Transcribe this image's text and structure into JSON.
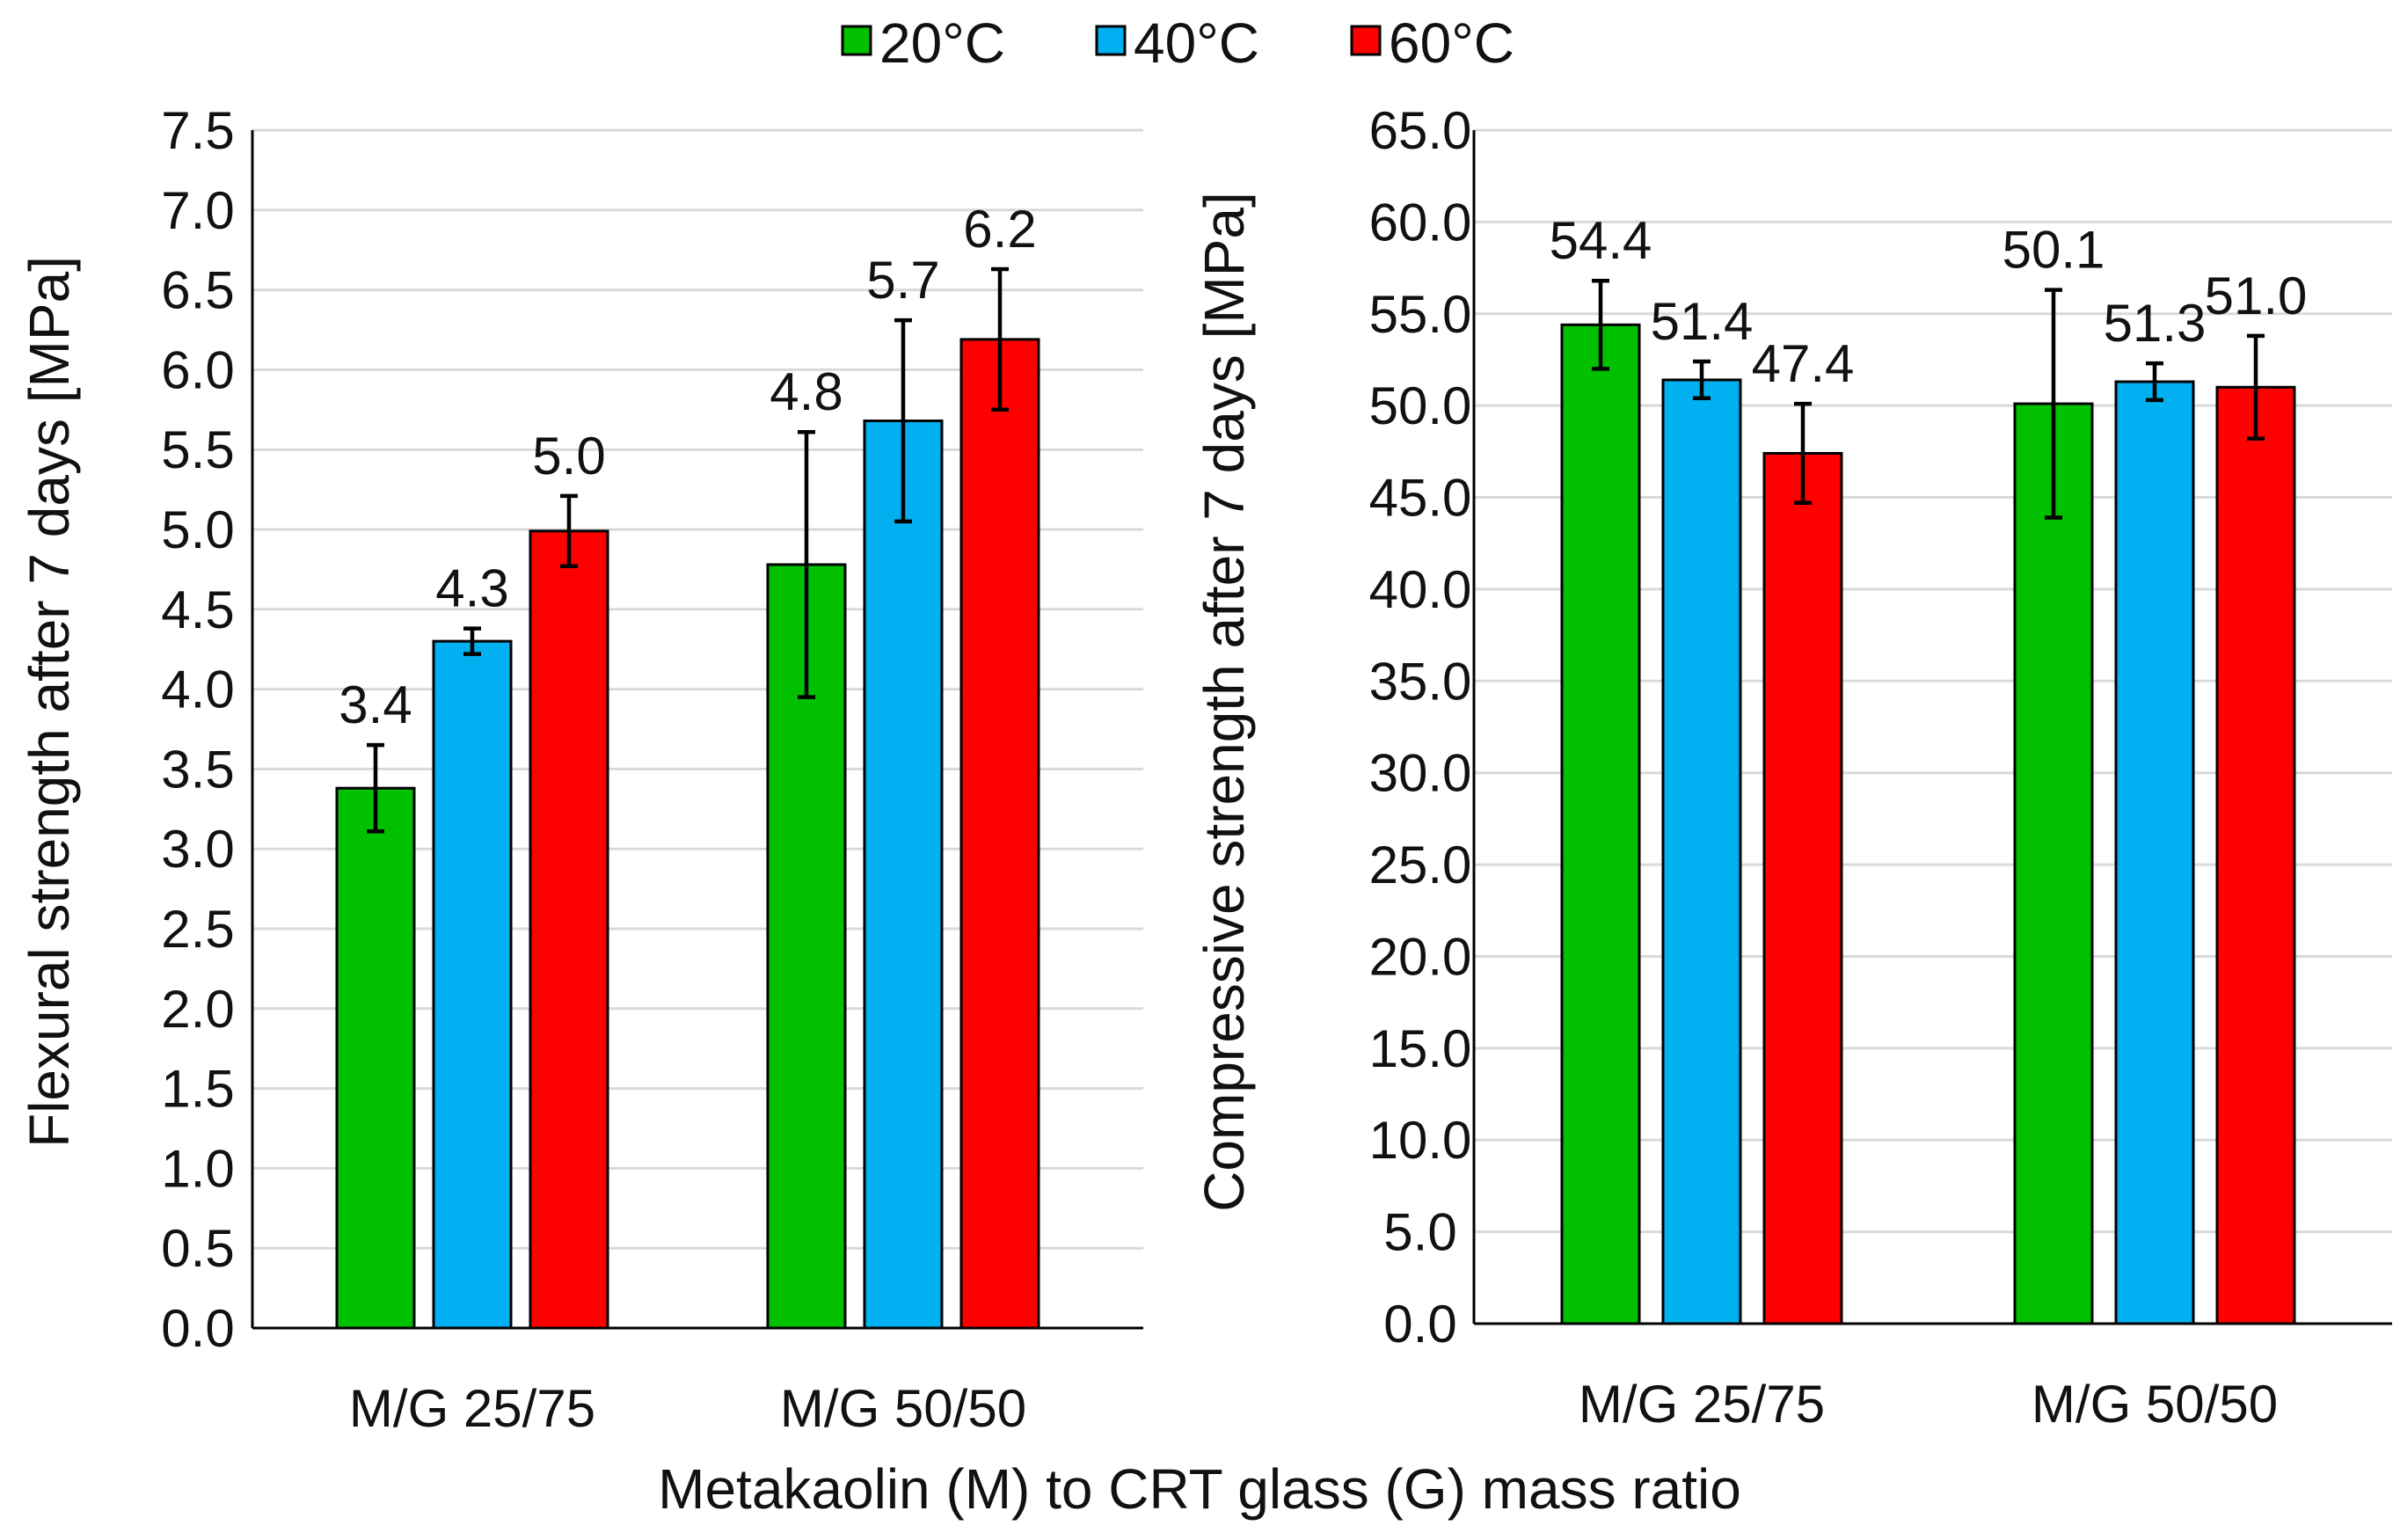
{
  "legend": [
    {
      "name": "20°C",
      "color": "#00c000"
    },
    {
      "name": "40°C",
      "color": "#00b0f0"
    },
    {
      "name": "60°C",
      "color": "#ff0000"
    }
  ],
  "xaxis_title": "Metakaolin (M) to CRT glass (G) mass ratio",
  "chart_data": [
    {
      "type": "bar",
      "title": "",
      "ylabel": "Flexural strength after 7 days [MPa]",
      "xlabel": "Metakaolin (M) to CRT glass (G) mass ratio",
      "categories": [
        "M/G 25/75",
        "M/G 50/50"
      ],
      "ylim": [
        0,
        7.5
      ],
      "ystep": 0.5,
      "decimals": 1,
      "grid": true,
      "series": [
        {
          "name": "20°C",
          "color": "#00c000",
          "values": [
            3.38,
            4.78
          ],
          "errors": [
            0.27,
            0.83
          ],
          "labels": [
            "3.4",
            "4.8"
          ]
        },
        {
          "name": "40°C",
          "color": "#00b0f0",
          "values": [
            4.3,
            5.68
          ],
          "errors": [
            0.08,
            0.63
          ],
          "labels": [
            "4.3",
            "5.7"
          ]
        },
        {
          "name": "60°C",
          "color": "#ff0000",
          "values": [
            4.99,
            6.19
          ],
          "errors": [
            0.22,
            0.44
          ],
          "labels": [
            "5.0",
            "6.2"
          ]
        }
      ]
    },
    {
      "type": "bar",
      "title": "",
      "ylabel": "Compressive strength after 7 days [MPa]",
      "xlabel": "Metakaolin (M) to CRT glass (G) mass ratio",
      "categories": [
        "M/G 25/75",
        "M/G 50/50"
      ],
      "ylim": [
        0,
        65
      ],
      "ystep": 5,
      "decimals": 1,
      "grid": true,
      "series": [
        {
          "name": "20°C",
          "color": "#00c000",
          "values": [
            54.4,
            50.1
          ],
          "errors": [
            2.4,
            6.2
          ],
          "labels": [
            "54.4",
            "50.1"
          ]
        },
        {
          "name": "40°C",
          "color": "#00b0f0",
          "values": [
            51.4,
            51.3
          ],
          "errors": [
            1.0,
            1.0
          ],
          "labels": [
            "51.4",
            "51.3"
          ]
        },
        {
          "name": "60°C",
          "color": "#ff0000",
          "values": [
            47.4,
            51.0
          ],
          "errors": [
            2.7,
            2.8
          ],
          "labels": [
            "47.4",
            "51.0"
          ]
        }
      ]
    }
  ]
}
